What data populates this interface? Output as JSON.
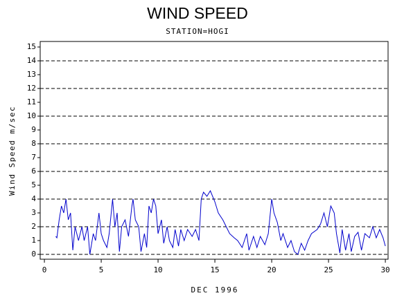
{
  "chart_data": {
    "type": "line",
    "title": "WIND SPEED",
    "subtitle": "STATION=HOGI",
    "x_label": "DEC 1996",
    "y_label": "Wind Speed m/sec",
    "xlim": [
      -0.37,
      30.24
    ],
    "ylim": [
      -0.35,
      15.4
    ],
    "xticks": [
      0,
      5,
      10,
      15,
      20,
      25,
      30
    ],
    "yticks": [
      0,
      1,
      2,
      3,
      4,
      5,
      6,
      7,
      8,
      9,
      10,
      11,
      12,
      13,
      14,
      15
    ],
    "ygrid": [
      0,
      2,
      4,
      6,
      8,
      10,
      12,
      14
    ],
    "series": [
      {
        "name": "Wind Speed",
        "color": "#0000cc",
        "x": [
          1,
          1.1,
          1.3,
          1.5,
          1.7,
          1.9,
          2.1,
          2.3,
          2.5,
          2.7,
          3,
          3.3,
          3.5,
          3.8,
          4,
          4.3,
          4.5,
          4.8,
          5,
          5.2,
          5.5,
          5.7,
          6,
          6.2,
          6.4,
          6.6,
          6.8,
          7.1,
          7.4,
          7.7,
          7.8,
          8,
          8.3,
          8.5,
          8.8,
          9,
          9.2,
          9.4,
          9.6,
          9.8,
          10,
          10.3,
          10.5,
          10.8,
          11,
          11.3,
          11.5,
          11.8,
          12,
          12.3,
          12.6,
          13,
          13.3,
          13.6,
          13.8,
          14,
          14.3,
          14.6,
          15,
          15.3,
          15.7,
          16,
          16.3,
          16.7,
          17,
          17.4,
          17.8,
          18,
          18.4,
          18.7,
          19,
          19.4,
          19.7,
          20,
          20.2,
          20.5,
          20.8,
          21,
          21.4,
          21.7,
          22,
          22.3,
          22.6,
          22.9,
          23.2,
          23.5,
          24,
          24.3,
          24.6,
          24.9,
          25.2,
          25.5,
          25.7,
          26,
          26.2,
          26.5,
          26.8,
          27,
          27.3,
          27.6,
          27.9,
          28.2,
          28.6,
          28.9,
          29.2,
          29.5,
          29.8,
          30
        ],
        "values": [
          1.3,
          1.2,
          2.5,
          3.5,
          3,
          4,
          2.5,
          3,
          0.3,
          2,
          1,
          2,
          1,
          2,
          0,
          1.5,
          1,
          3,
          1.5,
          1,
          0.5,
          1.5,
          4,
          2,
          3,
          0.2,
          2,
          2.5,
          1.3,
          3.5,
          4,
          2.5,
          2,
          0.2,
          1.5,
          0.5,
          3.5,
          3,
          4,
          3.5,
          1.5,
          2.5,
          0.8,
          2,
          1,
          0.5,
          1.8,
          0.6,
          1.8,
          1,
          1.8,
          1.3,
          1.8,
          1,
          4,
          4.5,
          4.2,
          4.6,
          3.8,
          3,
          2.5,
          2,
          1.5,
          1.2,
          1,
          0.5,
          1.5,
          0.3,
          1.3,
          0.5,
          1.3,
          0.7,
          1.5,
          4,
          3,
          2.3,
          1,
          1.5,
          0.5,
          1,
          0.2,
          0,
          0.8,
          0.3,
          1,
          1.5,
          1.8,
          2.2,
          3,
          2,
          3.5,
          3,
          1.5,
          0.1,
          1.8,
          0.3,
          1.5,
          0.2,
          1.3,
          1.6,
          0.3,
          1.5,
          1.2,
          2,
          1.2,
          1.8,
          1.2,
          0.6
        ]
      }
    ]
  }
}
